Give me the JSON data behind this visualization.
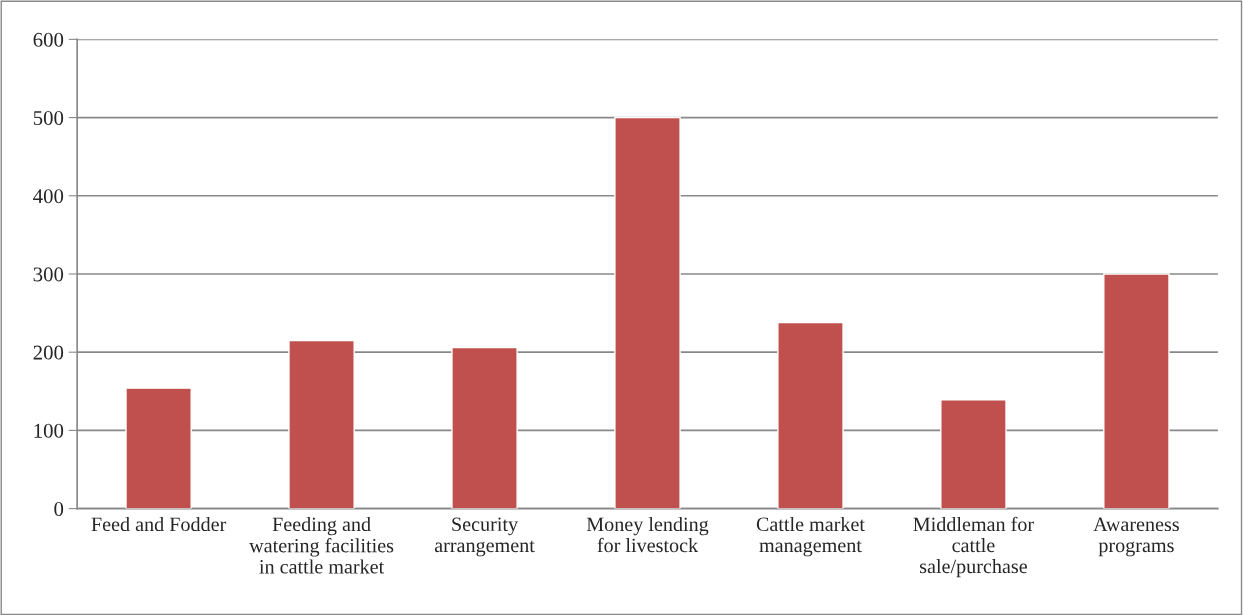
{
  "chart_data": {
    "type": "bar",
    "categories": [
      "Feed and Fodder",
      "Feeding and\nwatering facilities\nin cattle market",
      "Security\narrangement",
      "Money lending\nfor livestock",
      "Cattle market\nmanagement",
      "Middleman for\ncattle\nsale/purchase",
      "Awareness\nprograms"
    ],
    "values": [
      154,
      215,
      206,
      500,
      238,
      139,
      300
    ],
    "color": "#c0504d",
    "ylim": [
      0,
      600
    ],
    "yticks": [
      0,
      100,
      200,
      300,
      400,
      500,
      600
    ],
    "grid": "y"
  }
}
